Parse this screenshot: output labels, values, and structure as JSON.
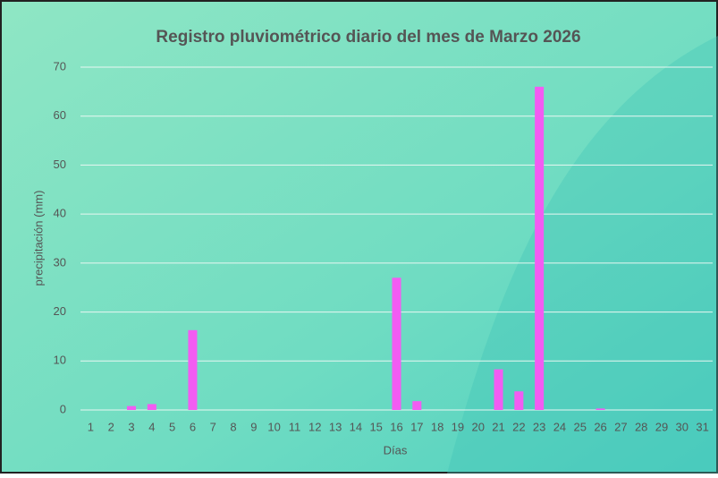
{
  "chart_data": {
    "type": "bar",
    "title": "Registro pluviométrico diario del mes de Marzo 2026",
    "x_label": "Días",
    "y_label": "precipitación (mm)",
    "categories": [
      "1",
      "2",
      "3",
      "4",
      "5",
      "6",
      "7",
      "8",
      "9",
      "10",
      "11",
      "12",
      "13",
      "14",
      "15",
      "16",
      "17",
      "18",
      "19",
      "20",
      "21",
      "22",
      "23",
      "24",
      "25",
      "26",
      "27",
      "28",
      "29",
      "30",
      "31"
    ],
    "values": [
      0,
      0,
      0.8,
      1.2,
      0,
      16.3,
      0,
      0,
      0,
      0,
      0,
      0,
      0,
      0,
      0,
      27,
      1.8,
      0,
      0,
      0,
      8.3,
      3.8,
      66,
      0,
      0,
      0.3,
      0,
      0,
      0,
      0,
      0
    ],
    "color": "#f25cf2",
    "ylim": [
      0,
      70
    ],
    "yticks": [
      0,
      10,
      20,
      30,
      40,
      50,
      60,
      70
    ],
    "grid": true
  }
}
